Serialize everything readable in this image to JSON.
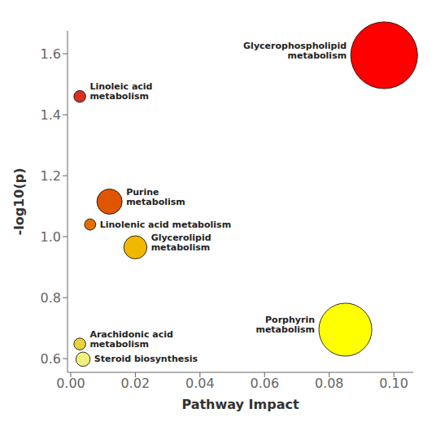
{
  "chart_data": {
    "type": "scatter",
    "x": [
      0.097,
      0.0028,
      0.012,
      0.006,
      0.02,
      0.085,
      0.0028,
      0.0038
    ],
    "values": [
      1.595,
      1.46,
      1.115,
      1.04,
      0.965,
      0.695,
      0.648,
      0.598
    ],
    "sizes": [
      3500,
      110,
      500,
      100,
      420,
      2200,
      110,
      160
    ],
    "colors": [
      "#FF0000",
      "#D93020",
      "#E05500",
      "#E07000",
      "#F0B800",
      "#FFFF00",
      "#E8D040",
      "#F0F080"
    ],
    "annotations": [
      "Glycerophospholipid\nmetabolism",
      "Linoleic acid\nmetabolism",
      "Purine\nmetabolism",
      "Linolenic acid metabolism",
      "Glycerolipid\nmetabolism",
      "Porphyrin\nmetabolism",
      "Arachidonic acid\nmetabolism",
      "Steroid biosynthesis"
    ],
    "xlabel": "Pathway Impact",
    "ylabel": "-log10(p)",
    "xlim": [
      -0.001,
      0.106
    ],
    "ylim": [
      0.555,
      1.675
    ],
    "xticks": [
      {
        "value": 0.0,
        "label": "0.00"
      },
      0.02,
      0.04,
      0.06,
      0.08,
      {
        "value": 0.1,
        "label": "0.10"
      }
    ],
    "yticks": [
      0.6,
      0.8,
      {
        "value": 1.0,
        "label": "1.0"
      },
      1.2,
      1.4,
      1.6
    ],
    "grid": false
  }
}
